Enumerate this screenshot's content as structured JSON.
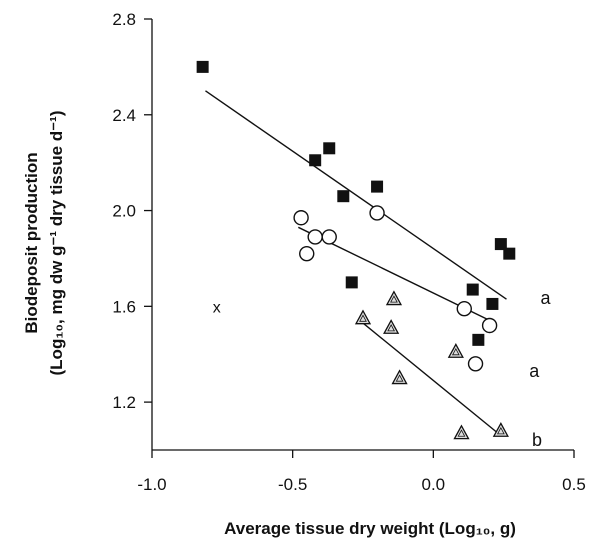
{
  "chart_data": {
    "type": "scatter",
    "title": "",
    "xlabel": "Average tissue dry weight (Log₁₀, g)",
    "ylabel_line1": "Biodeposit production",
    "ylabel_line2": "(Log₁₀, mg dw g⁻¹ dry  tissue d⁻¹)",
    "xlim": [
      -1.0,
      0.5
    ],
    "ylim": [
      1.0,
      2.8
    ],
    "x_ticks": [
      -1.0,
      -0.5,
      0.0,
      0.5
    ],
    "x_tick_labels": [
      "-1.0",
      "-0.5",
      "0.0",
      "0.5"
    ],
    "y_ticks": [
      1.2,
      1.6,
      2.0,
      2.4,
      2.8
    ],
    "y_tick_labels": [
      "1.2",
      "1.6",
      "2.0",
      "2.4",
      "2.8"
    ],
    "grid": false,
    "legend": "none",
    "series": [
      {
        "marker": "filled-square",
        "points": [
          [
            -0.82,
            2.6
          ],
          [
            -0.42,
            2.21
          ],
          [
            -0.37,
            2.26
          ],
          [
            -0.32,
            2.06
          ],
          [
            -0.2,
            2.1
          ],
          [
            -0.29,
            1.7
          ],
          [
            0.14,
            1.67
          ],
          [
            0.16,
            1.46
          ],
          [
            0.21,
            1.61
          ],
          [
            0.24,
            1.86
          ],
          [
            0.27,
            1.82
          ]
        ],
        "fit": [
          [
            -0.81,
            2.5
          ],
          [
            0.26,
            1.63
          ]
        ],
        "group_letter": "a"
      },
      {
        "marker": "open-circle",
        "points": [
          [
            -0.47,
            1.97
          ],
          [
            -0.45,
            1.82
          ],
          [
            -0.42,
            1.89
          ],
          [
            -0.37,
            1.89
          ],
          [
            -0.2,
            1.99
          ],
          [
            0.11,
            1.59
          ],
          [
            0.15,
            1.36
          ],
          [
            0.2,
            1.52
          ]
        ],
        "fit": [
          [
            -0.48,
            1.93
          ],
          [
            0.22,
            1.53
          ]
        ],
        "group_letter": "a"
      },
      {
        "marker": "open-triangle",
        "points": [
          [
            -0.25,
            1.55
          ],
          [
            -0.14,
            1.63
          ],
          [
            -0.15,
            1.51
          ],
          [
            -0.12,
            1.3
          ],
          [
            0.08,
            1.41
          ],
          [
            0.1,
            1.07
          ],
          [
            0.24,
            1.08
          ]
        ],
        "fit": [
          [
            -0.25,
            1.53
          ],
          [
            0.23,
            1.07
          ]
        ],
        "group_letter": "b"
      }
    ],
    "annotations": [
      {
        "text": "x",
        "x": -0.77,
        "y": 1.6
      }
    ],
    "colors": {
      "ink": "#111111",
      "triangle_fill": "#dddddd"
    }
  }
}
